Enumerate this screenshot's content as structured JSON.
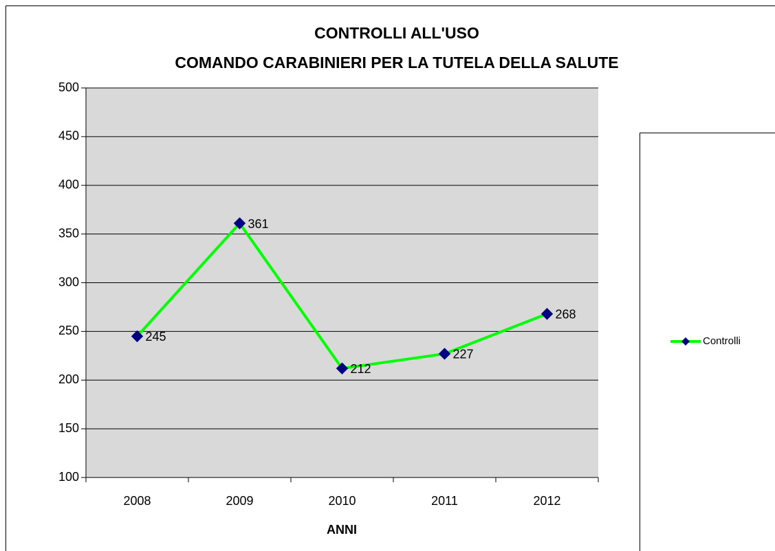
{
  "chart_data": {
    "type": "line",
    "title": "CONTROLLI ALL'USO",
    "subtitle": "COMANDO CARABINIERI PER LA TUTELA DELLA SALUTE",
    "x_label": "ANNI",
    "categories": [
      "2008",
      "2009",
      "2010",
      "2011",
      "2012"
    ],
    "series": [
      {
        "name": "Controlli",
        "color": "#00ff00",
        "marker_color": "#000080",
        "values": [
          245,
          361,
          212,
          227,
          268
        ]
      }
    ],
    "ylim": [
      100,
      500
    ],
    "yticks": [
      100,
      150,
      200,
      250,
      300,
      350,
      400,
      450,
      500
    ],
    "grid": true,
    "legend": "right"
  }
}
